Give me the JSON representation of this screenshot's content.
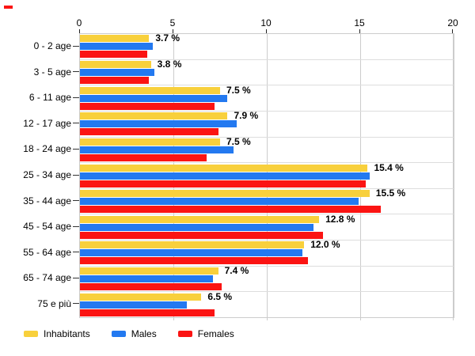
{
  "colors": {
    "inhabitants": "#F8D03C",
    "males": "#2379F0",
    "females": "#FB1413",
    "gridline": "#CCCCCC",
    "row_separator": "#DDDDDD",
    "tick_mark": "#222222",
    "text": "#000000"
  },
  "artifact": {
    "description": "small red dash in top-left corner",
    "color": "#FB1413"
  },
  "chart_data": {
    "type": "bar",
    "orientation": "horizontal",
    "title": "",
    "xlabel": "",
    "ylabel": "",
    "xlim": [
      0,
      20
    ],
    "x_ticks": [
      "0",
      "5",
      "10",
      "15",
      "20"
    ],
    "grid": true,
    "legend_position": "bottom",
    "categories": [
      "0 - 2 age",
      "3 - 5 age",
      "6 - 11 age",
      "12 - 17 age",
      "18 - 24 age",
      "25 - 34 age",
      "35 - 44 age",
      "45 - 54 age",
      "55 - 64 age",
      "65 - 74 age",
      "75 e più"
    ],
    "series": [
      {
        "name": "Inhabitants",
        "color": "#F8D03C",
        "values": [
          3.7,
          3.8,
          7.5,
          7.9,
          7.5,
          15.4,
          15.5,
          12.8,
          12.0,
          7.4,
          6.5
        ]
      },
      {
        "name": "Males",
        "color": "#2379F0",
        "values": [
          3.9,
          4.0,
          7.9,
          8.4,
          8.2,
          15.5,
          14.9,
          12.5,
          11.9,
          7.1,
          5.7
        ]
      },
      {
        "name": "Females",
        "color": "#FB1413",
        "values": [
          3.6,
          3.7,
          7.2,
          7.4,
          6.8,
          15.3,
          16.1,
          13.0,
          12.2,
          7.6,
          7.2
        ]
      }
    ],
    "bar_labels": [
      "3.7 %",
      "3.8 %",
      "7.5 %",
      "7.9 %",
      "7.5 %",
      "15.4 %",
      "15.5 %",
      "12.8 %",
      "12.0 %",
      "7.4 %",
      "6.5 %"
    ]
  },
  "legend": {
    "items": [
      {
        "label": "Inhabitants",
        "color": "#F8D03C"
      },
      {
        "label": "Males",
        "color": "#2379F0"
      },
      {
        "label": "Females",
        "color": "#FB1413"
      }
    ]
  }
}
